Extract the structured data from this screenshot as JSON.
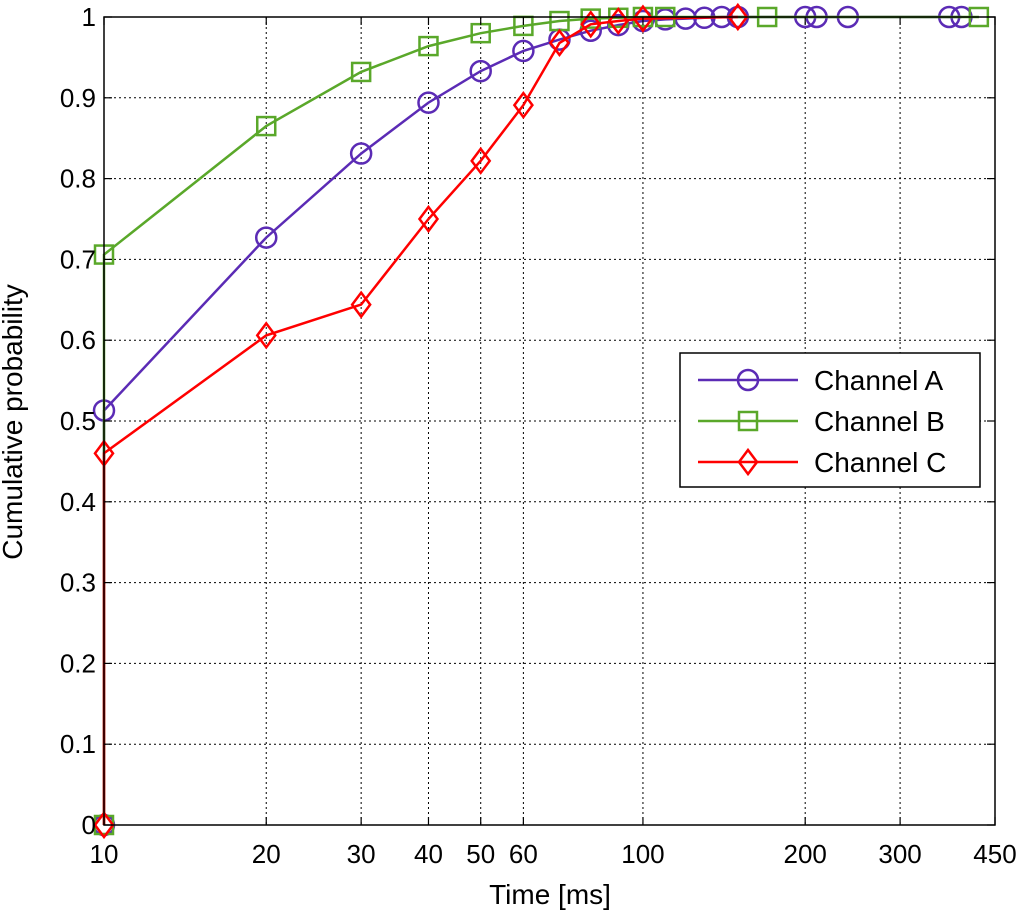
{
  "chart_data": {
    "type": "line",
    "x_scale": "log",
    "xlim": [
      10,
      450
    ],
    "ylim": [
      0,
      1
    ],
    "grid": true,
    "xlabel": "Time [ms]",
    "ylabel": "Cumulative probability",
    "xticks": [
      10,
      20,
      30,
      40,
      50,
      60,
      100,
      200,
      300,
      450
    ],
    "xtick_labels": [
      "10",
      "20",
      "30",
      "40",
      "50",
      "60",
      "100",
      "200",
      "300",
      "450"
    ],
    "yticks": [
      0,
      0.1,
      0.2,
      0.3,
      0.4,
      0.5,
      0.6,
      0.7,
      0.8,
      0.9,
      1
    ],
    "ytick_labels": [
      "0",
      "0.1",
      "0.2",
      "0.3",
      "0.4",
      "0.5",
      "0.6",
      "0.7",
      "0.8",
      "0.9",
      "1"
    ],
    "legend_position": "center-right",
    "series": [
      {
        "name": "Channel A",
        "color": "#5b2bb5",
        "marker": "circle",
        "points": [
          [
            10,
            0
          ],
          [
            10,
            0.513
          ],
          [
            20,
            0.727
          ],
          [
            30,
            0.831
          ],
          [
            40,
            0.894
          ],
          [
            50,
            0.933
          ],
          [
            60,
            0.958
          ],
          [
            70,
            0.972
          ],
          [
            80,
            0.983
          ],
          [
            90,
            0.99
          ],
          [
            100,
            0.995
          ],
          [
            110,
            0.997
          ],
          [
            120,
            0.998
          ],
          [
            130,
            0.999
          ],
          [
            140,
            1.0
          ],
          [
            150,
            1.0
          ],
          [
            200,
            1.0
          ],
          [
            210,
            1.0
          ],
          [
            240,
            1.0
          ],
          [
            370,
            1.0
          ],
          [
            390,
            1.0
          ]
        ]
      },
      {
        "name": "Channel B",
        "color": "#5aa82a",
        "marker": "square",
        "points": [
          [
            10,
            0
          ],
          [
            10,
            0.706
          ],
          [
            20,
            0.865
          ],
          [
            30,
            0.932
          ],
          [
            40,
            0.964
          ],
          [
            50,
            0.98
          ],
          [
            60,
            0.989
          ],
          [
            70,
            0.995
          ],
          [
            80,
            0.998
          ],
          [
            90,
            0.999
          ],
          [
            100,
            1.0
          ],
          [
            110,
            1.0
          ],
          [
            170,
            1.0
          ],
          [
            420,
            1.0
          ]
        ]
      },
      {
        "name": "Channel C",
        "color": "#ff0000",
        "marker": "diamond",
        "points": [
          [
            10,
            0
          ],
          [
            10,
            0.46
          ],
          [
            20,
            0.606
          ],
          [
            30,
            0.644
          ],
          [
            40,
            0.75
          ],
          [
            50,
            0.822
          ],
          [
            60,
            0.891
          ],
          [
            70,
            0.968
          ],
          [
            80,
            0.991
          ],
          [
            90,
            0.995
          ],
          [
            100,
            0.998
          ],
          [
            150,
            1.0
          ]
        ]
      }
    ]
  }
}
